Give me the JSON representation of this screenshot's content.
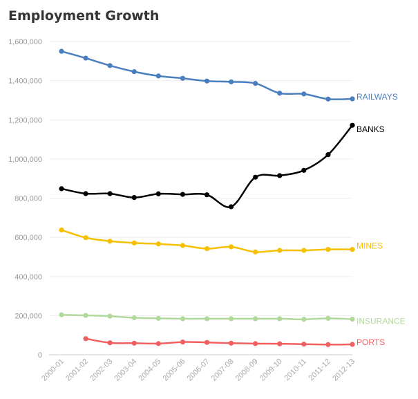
{
  "chart_data": {
    "type": "line",
    "title": "Employment Growth",
    "xlabel": "",
    "ylabel": "",
    "ylim": [
      0,
      1600000
    ],
    "y_ticks": [
      "0",
      "200,000",
      "400,000",
      "600,000",
      "800,000",
      "1,000,000",
      "1,200,000",
      "1,400,000",
      "1,600,000"
    ],
    "y_tick_values": [
      0,
      200000,
      400000,
      600000,
      800000,
      1000000,
      1200000,
      1400000,
      1600000
    ],
    "categories": [
      "2000-01",
      "2001-02",
      "2002-03",
      "2003-04",
      "2004-05",
      "2005-06",
      "2006-07",
      "2007-08",
      "2008-09",
      "2009-10",
      "2010-11",
      "2011-12",
      "2012-13"
    ],
    "grid": true,
    "legend": "inline-right",
    "series": [
      {
        "name": "RAILWAYS",
        "color": "#4a7fbf",
        "values": [
          1550000,
          1515000,
          1477000,
          1446000,
          1424000,
          1412000,
          1398000,
          1394000,
          1386000,
          1336000,
          1332000,
          1306000,
          1307000
        ]
      },
      {
        "name": "BANKS",
        "color": "#000000",
        "values": [
          848000,
          823000,
          823000,
          803000,
          822000,
          819000,
          817000,
          756000,
          907000,
          915000,
          942000,
          1022000,
          1172000
        ]
      },
      {
        "name": "MINES",
        "color": "#f5c000",
        "values": [
          637000,
          598000,
          580000,
          571000,
          566000,
          558000,
          542000,
          551000,
          525000,
          533000,
          533000,
          538000,
          538000
        ]
      },
      {
        "name": "INSURANCE",
        "color": "#b2d99c",
        "values": [
          204000,
          201000,
          197000,
          189000,
          186000,
          184000,
          184000,
          184000,
          184000,
          184000,
          181000,
          186000,
          182000
        ]
      },
      {
        "name": "PORTS",
        "color": "#f06060",
        "values": [
          null,
          82000,
          61000,
          59000,
          57000,
          65000,
          63000,
          59000,
          57000,
          56000,
          54000,
          52000,
          53000
        ]
      }
    ]
  }
}
